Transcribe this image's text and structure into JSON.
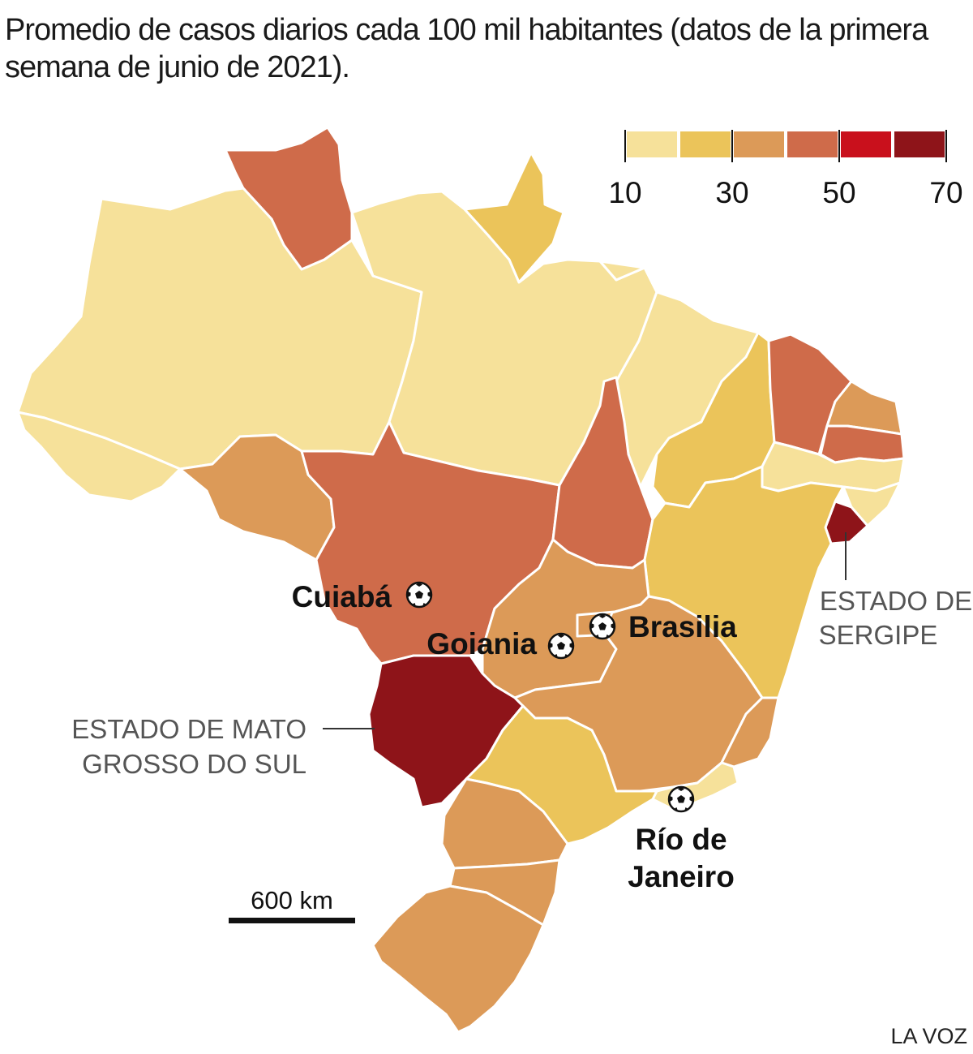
{
  "title": "Promedio de casos diarios cada 100 mil habitantes (datos de la primera semana de junio de 2021).",
  "legend": {
    "ticks": [
      "10",
      "30",
      "50",
      "70"
    ],
    "bins": [
      {
        "range": [
          10,
          20
        ],
        "color": "#f6e19a"
      },
      {
        "range": [
          20,
          30
        ],
        "color": "#ebc45a"
      },
      {
        "range": [
          30,
          40
        ],
        "color": "#dc9a58"
      },
      {
        "range": [
          40,
          50
        ],
        "color": "#cf6b4a"
      },
      {
        "range": [
          50,
          60
        ],
        "color": "#c9101c"
      },
      {
        "range": [
          60,
          70
        ],
        "color": "#8e1419"
      }
    ]
  },
  "cities": {
    "cuiaba": "Cuiabá",
    "goiania": "Goiania",
    "brasilia": "Brasilia",
    "rio_line1": "Río de",
    "rio_line2": "Janeiro"
  },
  "annotations": {
    "sergipe_line1": "ESTADO DE",
    "sergipe_line2": "SERGIPE",
    "ms_line1": "ESTADO DE MATO",
    "ms_line2": "GROSSO DO SUL"
  },
  "scale": {
    "label": "600 km"
  },
  "credit": "LA VOZ",
  "icons": {
    "stadium_marker": "soccer-ball-icon"
  },
  "states": [
    {
      "key": "roraima",
      "bin": 3
    },
    {
      "key": "amapa",
      "bin": 1
    },
    {
      "key": "amazonas",
      "bin": 0
    },
    {
      "key": "para",
      "bin": 0
    },
    {
      "key": "acre",
      "bin": 0
    },
    {
      "key": "rondonia",
      "bin": 2
    },
    {
      "key": "mato-grosso",
      "bin": 3
    },
    {
      "key": "maranhao",
      "bin": 0
    },
    {
      "key": "tocantins",
      "bin": 3
    },
    {
      "key": "piaui",
      "bin": 1
    },
    {
      "key": "ceara",
      "bin": 3
    },
    {
      "key": "rio-grande-do-norte",
      "bin": 2
    },
    {
      "key": "paraiba",
      "bin": 3
    },
    {
      "key": "pernambuco",
      "bin": 0
    },
    {
      "key": "alagoas",
      "bin": 0
    },
    {
      "key": "sergipe",
      "bin": 5
    },
    {
      "key": "bahia",
      "bin": 1
    },
    {
      "key": "goias",
      "bin": 2
    },
    {
      "key": "distrito-federal",
      "bin": 2
    },
    {
      "key": "mato-grosso-do-sul",
      "bin": 5
    },
    {
      "key": "minas-gerais",
      "bin": 2
    },
    {
      "key": "espirito-santo",
      "bin": 2
    },
    {
      "key": "rio-de-janeiro",
      "bin": 0
    },
    {
      "key": "sao-paulo",
      "bin": 1
    },
    {
      "key": "parana",
      "bin": 2
    },
    {
      "key": "santa-catarina",
      "bin": 2
    },
    {
      "key": "rio-grande-do-sul",
      "bin": 2
    }
  ]
}
